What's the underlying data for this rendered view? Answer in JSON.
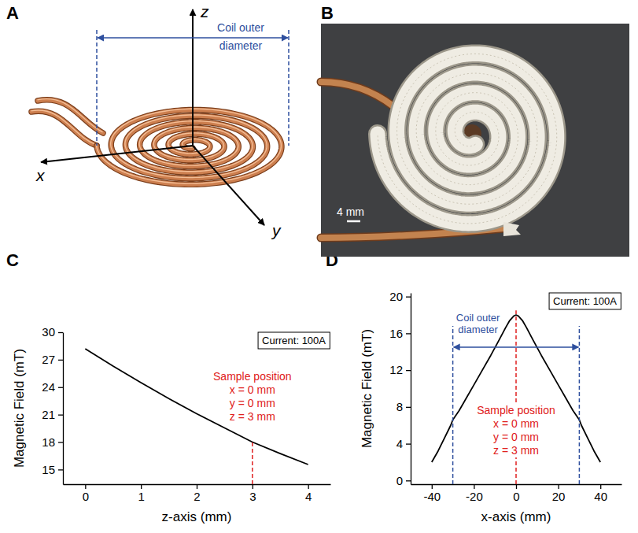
{
  "panel_labels": [
    "A",
    "B",
    "C",
    "D"
  ],
  "schematic": {
    "axis_labels": [
      "z",
      "x",
      "y"
    ],
    "dimension_label": "Coil outer diameter",
    "color": "#2e4f9e"
  },
  "photo": {
    "scale_bar": "4 mm"
  },
  "chart_data": [
    {
      "type": "line",
      "x_label": "z-axis (mm)",
      "y_label": "Magnetic Field (mT)",
      "x": [
        0,
        0.5,
        1,
        1.5,
        2,
        2.5,
        3,
        3.5,
        4
      ],
      "values": [
        28.2,
        26.3,
        24.5,
        22.75,
        21.1,
        19.55,
        18.0,
        16.75,
        15.55
      ],
      "color": "#000000",
      "xlim": [
        -0.4,
        4.4
      ],
      "xticks": [
        0,
        1,
        2,
        3,
        4
      ],
      "ylim": [
        13.4,
        30
      ],
      "yticks": [
        15,
        18,
        21,
        24,
        27,
        30
      ],
      "annotations": [
        {
          "text": "Current: 100A"
        },
        {
          "text": [
            "Sample position",
            "x = 0 mm",
            "y = 0 mm",
            "z = 3 mm"
          ],
          "x": 3,
          "y": 18,
          "color": "#e02020"
        }
      ]
    },
    {
      "type": "line",
      "x_label": "x-axis (mm)",
      "y_label": "Magnetic Field (mT)",
      "x": [
        -40,
        -37,
        -34,
        -31,
        -30,
        -27,
        -24,
        -20,
        -16,
        -12,
        -8,
        -5,
        -3,
        -1,
        0,
        1,
        3,
        5,
        8,
        12,
        16,
        20,
        24,
        27,
        30,
        31,
        34,
        37,
        40
      ],
      "values": [
        2.0,
        3.2,
        4.6,
        6.0,
        6.6,
        7.6,
        8.8,
        10.4,
        12.0,
        13.6,
        15.3,
        16.6,
        17.4,
        17.9,
        18.0,
        17.9,
        17.4,
        16.6,
        15.3,
        13.6,
        12.0,
        10.4,
        8.8,
        7.6,
        6.6,
        6.0,
        4.6,
        3.2,
        2.0
      ],
      "color": "#000000",
      "xlim": [
        -50,
        50
      ],
      "xticks": [
        -40,
        -20,
        0,
        20,
        40
      ],
      "ylim": [
        -0.4,
        20.4
      ],
      "yticks": [
        0,
        4,
        8,
        12,
        16,
        20
      ],
      "annotations": [
        {
          "text": "Current: 100A"
        },
        {
          "text": "Coil outer diameter",
          "x": [
            -30,
            30
          ],
          "y": 14.5,
          "y_top": 16.8,
          "color": "#2e4f9e"
        },
        {
          "text": [
            "Sample position",
            "x = 0 mm",
            "y = 0 mm",
            "z = 3 mm"
          ],
          "x": 0,
          "y": 18.5,
          "color": "#e02020"
        }
      ]
    }
  ]
}
